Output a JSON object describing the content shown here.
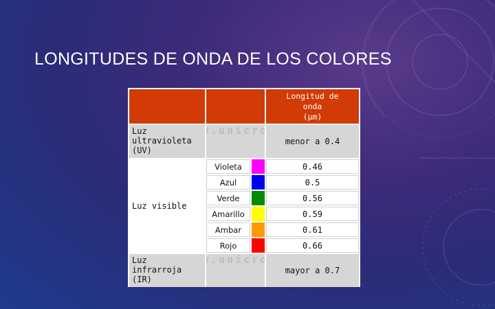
{
  "slide": {
    "title": "LONGITUDES DE ONDA DE LOS COLORES"
  },
  "table": {
    "header": {
      "wavelength_label_line1": "Longitud de",
      "wavelength_label_line2": "onda",
      "wavelength_label_line3": "(µm)"
    },
    "watermark": "www.unicrom",
    "uv": {
      "line1": "Luz",
      "line2": "ultravioleta",
      "line3": "(UV)",
      "value": "menor a 0.4"
    },
    "visible": {
      "label": "Luz visible",
      "colors": [
        {
          "name": "Violeta",
          "swatch": "#ff00ff",
          "value": "0.46"
        },
        {
          "name": "Azul",
          "swatch": "#0000ee",
          "value": "0.5"
        },
        {
          "name": "Verde",
          "swatch": "#008c00",
          "value": "0.56"
        },
        {
          "name": "Amarillo",
          "swatch": "#ffff00",
          "value": "0.59"
        },
        {
          "name": "Ambar",
          "swatch": "#ff9900",
          "value": "0.61"
        },
        {
          "name": "Rojo",
          "swatch": "#ff0000",
          "value": "0.66"
        }
      ]
    },
    "ir": {
      "line1": "Luz",
      "line2": "infrarroja",
      "line3": "(IR)",
      "value": "mayor a 0.7"
    }
  },
  "colors": {
    "header_bg": "#d23a06",
    "cell_grey": "#d6d6d6"
  }
}
